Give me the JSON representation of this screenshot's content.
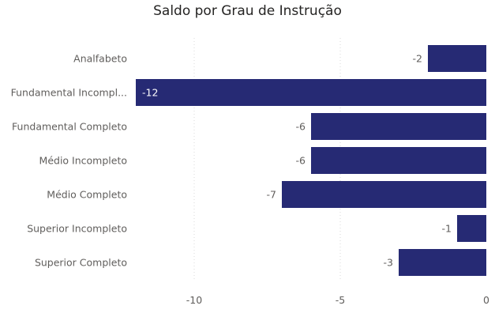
{
  "chart_data": {
    "type": "bar",
    "orientation": "horizontal",
    "title": "Saldo por Grau de Instrução",
    "xlabel": "",
    "ylabel": "",
    "categories": [
      "Analfabeto",
      "Fundamental Incompl...",
      "Fundamental Completo",
      "Médio Incompleto",
      "Médio Completo",
      "Superior Incompleto",
      "Superior Completo"
    ],
    "values": [
      -2,
      -12,
      -6,
      -6,
      -7,
      -1,
      -3
    ],
    "data_labels": [
      "-2",
      "-12",
      "-6",
      "-6",
      "-7",
      "-1",
      "-3"
    ],
    "xlim": [
      -12,
      0
    ],
    "x_ticks": [
      -10,
      -5,
      0
    ],
    "x_tick_labels": [
      "-10",
      "-5",
      "0"
    ],
    "grid": true,
    "legend": "none",
    "colors": {
      "bar": "#262a74",
      "label_outside": "#605e5c",
      "label_inside": "#ffffff",
      "grid": "#d9d9d9"
    }
  }
}
